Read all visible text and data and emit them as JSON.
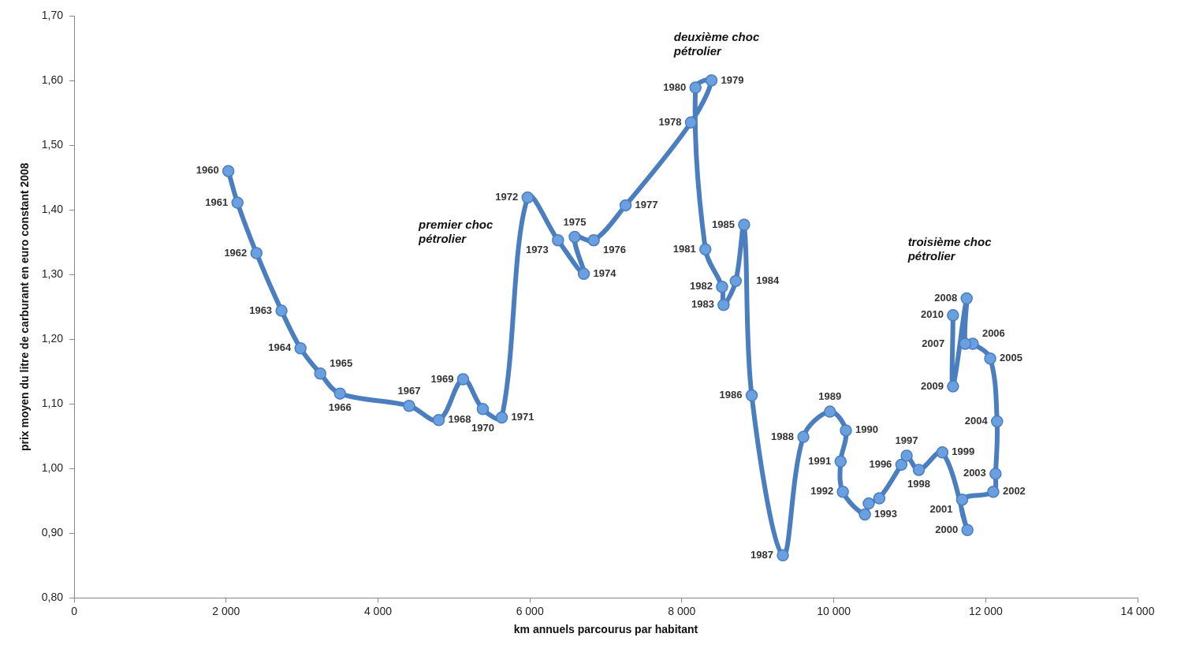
{
  "chart_data": {
    "type": "line",
    "xlabel": "km annuels parcourus par habitant",
    "ylabel": "prix moyen du litre de carburant en euro constant 2008",
    "xlim": [
      0,
      14000
    ],
    "xticks": [
      {
        "value": 0,
        "label": "0"
      },
      {
        "value": 2000,
        "label": "2 000"
      },
      {
        "value": 4000,
        "label": "4 000"
      },
      {
        "value": 6000,
        "label": "6 000"
      },
      {
        "value": 8000,
        "label": "8 000"
      },
      {
        "value": 10000,
        "label": "10 000"
      },
      {
        "value": 12000,
        "label": "12 000"
      },
      {
        "value": 14000,
        "label": "14 000"
      }
    ],
    "ylim": [
      0.8,
      1.7
    ],
    "yticks": [
      {
        "value": 0.8,
        "label": "0,80"
      },
      {
        "value": 0.9,
        "label": "0,90"
      },
      {
        "value": 1.0,
        "label": "1,00"
      },
      {
        "value": 1.1,
        "label": "1,10"
      },
      {
        "value": 1.2,
        "label": "1,20"
      },
      {
        "value": 1.3,
        "label": "1,30"
      },
      {
        "value": 1.4,
        "label": "1,40"
      },
      {
        "value": 1.5,
        "label": "1,50"
      },
      {
        "value": 1.6,
        "label": "1,60"
      },
      {
        "value": 1.7,
        "label": "1,70"
      }
    ],
    "grid": false,
    "legend": false,
    "marker": "circle",
    "line_style": "solid",
    "x": [
      2030,
      2150,
      2400,
      2730,
      2980,
      3240,
      3500,
      4410,
      4800,
      5120,
      5380,
      5630,
      5970,
      6370,
      6710,
      6590,
      6840,
      7260,
      8120,
      8390,
      8180,
      8310,
      8530,
      8550,
      8710,
      8820,
      8920,
      9330,
      9600,
      9950,
      10160,
      10090,
      10120,
      10410,
      10460,
      10600,
      10890,
      10960,
      11120,
      11430,
      11760,
      11690,
      12100,
      12130,
      12150,
      12060,
      11830,
      11730,
      11750,
      11570,
      11570
    ],
    "series": [
      {
        "color": "#4a7ebf",
        "values": [
          1.46,
          1.411,
          1.333,
          1.244,
          1.186,
          1.147,
          1.116,
          1.097,
          1.075,
          1.138,
          1.092,
          1.079,
          1.419,
          1.353,
          1.301,
          1.358,
          1.353,
          1.407,
          1.535,
          1.6,
          1.589,
          1.339,
          1.281,
          1.253,
          1.29,
          1.377,
          1.113,
          0.866,
          1.049,
          1.088,
          1.059,
          1.011,
          0.964,
          0.929,
          0.946,
          0.954,
          1.006,
          1.02,
          0.998,
          1.025,
          0.905,
          0.952,
          0.964,
          0.992,
          1.073,
          1.17,
          1.193,
          1.193,
          1.263,
          1.127,
          1.237
        ]
      }
    ],
    "annotations": [
      {
        "text": "1960",
        "x": 2030,
        "y": 1.46
      },
      {
        "text": "1961",
        "x": 2150,
        "y": 1.411
      },
      {
        "text": "1962",
        "x": 2400,
        "y": 1.333
      },
      {
        "text": "1963",
        "x": 2730,
        "y": 1.244
      },
      {
        "text": "1964",
        "x": 2980,
        "y": 1.186
      },
      {
        "text": "1965",
        "x": 3240,
        "y": 1.147
      },
      {
        "text": "1966",
        "x": 3500,
        "y": 1.116
      },
      {
        "text": "1967",
        "x": 4410,
        "y": 1.097
      },
      {
        "text": "1968",
        "x": 4800,
        "y": 1.075
      },
      {
        "text": "1969",
        "x": 5120,
        "y": 1.138
      },
      {
        "text": "1970",
        "x": 5380,
        "y": 1.092
      },
      {
        "text": "1971",
        "x": 5630,
        "y": 1.079
      },
      {
        "text": "1972",
        "x": 5970,
        "y": 1.419
      },
      {
        "text": "1973",
        "x": 6370,
        "y": 1.353
      },
      {
        "text": "1974",
        "x": 6710,
        "y": 1.301
      },
      {
        "text": "1975",
        "x": 6590,
        "y": 1.358
      },
      {
        "text": "1976",
        "x": 6840,
        "y": 1.353
      },
      {
        "text": "1977",
        "x": 7260,
        "y": 1.407
      },
      {
        "text": "1978",
        "x": 8120,
        "y": 1.535
      },
      {
        "text": "1979",
        "x": 8390,
        "y": 1.6
      },
      {
        "text": "1980",
        "x": 8180,
        "y": 1.589
      },
      {
        "text": "1981",
        "x": 8310,
        "y": 1.339
      },
      {
        "text": "1982",
        "x": 8530,
        "y": 1.281
      },
      {
        "text": "1983",
        "x": 8550,
        "y": 1.253
      },
      {
        "text": "1984",
        "x": 8710,
        "y": 1.29
      },
      {
        "text": "1985",
        "x": 8820,
        "y": 1.377
      },
      {
        "text": "1986",
        "x": 8920,
        "y": 1.113
      },
      {
        "text": "1987",
        "x": 9330,
        "y": 0.866
      },
      {
        "text": "1988",
        "x": 9600,
        "y": 1.049
      },
      {
        "text": "1989",
        "x": 9950,
        "y": 1.088
      },
      {
        "text": "1990",
        "x": 10160,
        "y": 1.059
      },
      {
        "text": "1991",
        "x": 10090,
        "y": 1.011
      },
      {
        "text": "1992",
        "x": 10120,
        "y": 0.964
      },
      {
        "text": "1993",
        "x": 10410,
        "y": 0.929
      },
      {
        "text": "1996",
        "x": 10890,
        "y": 1.006
      },
      {
        "text": "1997",
        "x": 10960,
        "y": 1.02
      },
      {
        "text": "1998",
        "x": 11120,
        "y": 0.998
      },
      {
        "text": "1999",
        "x": 11430,
        "y": 1.025
      },
      {
        "text": "2000",
        "x": 11760,
        "y": 0.905
      },
      {
        "text": "2001",
        "x": 11690,
        "y": 0.952
      },
      {
        "text": "2002",
        "x": 12100,
        "y": 0.964
      },
      {
        "text": "2003",
        "x": 12130,
        "y": 0.992
      },
      {
        "text": "2004",
        "x": 12150,
        "y": 1.073
      },
      {
        "text": "2005",
        "x": 12060,
        "y": 1.17
      },
      {
        "text": "2006",
        "x": 11830,
        "y": 1.193
      },
      {
        "text": "2007",
        "x": 11730,
        "y": 1.193
      },
      {
        "text": "2008",
        "x": 11750,
        "y": 1.263
      },
      {
        "text": "2009",
        "x": 11570,
        "y": 1.127
      },
      {
        "text": "2010",
        "x": 11570,
        "y": 1.237
      },
      "premier choc pétrolier",
      "deuxième choc pétrolier",
      "troisième choc pétrolier"
    ]
  }
}
